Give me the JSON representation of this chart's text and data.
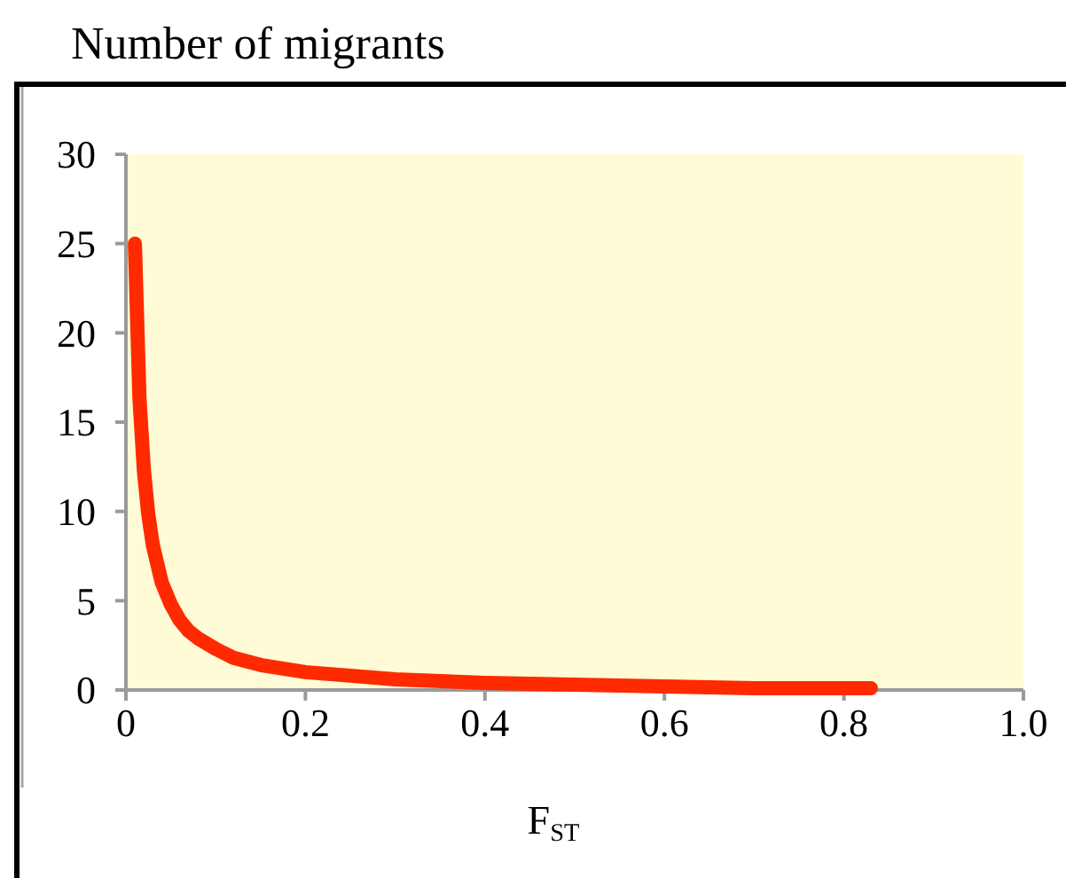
{
  "chart_data": {
    "type": "line",
    "ylabel": "Number of migrants",
    "xlabel": "F$_{ST}$",
    "x": [
      0.01,
      0.015,
      0.02,
      0.025,
      0.03,
      0.04,
      0.05,
      0.06,
      0.07,
      0.08,
      0.1,
      0.12,
      0.15,
      0.2,
      0.25,
      0.3,
      0.4,
      0.5,
      0.6,
      0.7,
      0.83
    ],
    "series": [
      {
        "color": "#ff2a00",
        "values": [
          25,
          16.4,
          12.3,
          9.8,
          8.1,
          6.0,
          4.8,
          3.9,
          3.3,
          2.9,
          2.3,
          1.8,
          1.4,
          1.0,
          0.8,
          0.6,
          0.4,
          0.3,
          0.2,
          0.1,
          0.1
        ]
      }
    ],
    "xlim": [
      0,
      1
    ],
    "ylim": [
      0,
      30
    ],
    "xticks": [
      0,
      0.2,
      0.4,
      0.6,
      0.8,
      {
        "value": 1,
        "label": "1.0"
      }
    ],
    "yticks": [
      0,
      5,
      10,
      15,
      20,
      25,
      30
    ],
    "line_style": "solid"
  }
}
